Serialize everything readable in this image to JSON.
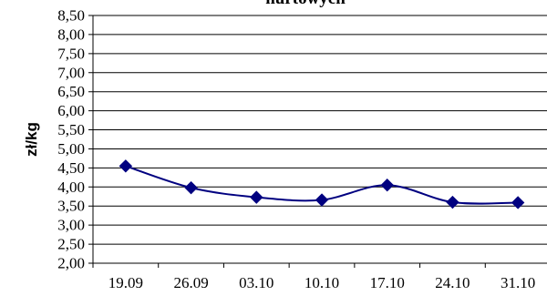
{
  "chart_data": {
    "type": "line",
    "title": "hurtowych",
    "xlabel": "",
    "ylabel": "zł/kg",
    "categories": [
      "19.09",
      "26.09",
      "03.10",
      "10.10",
      "17.10",
      "24.10",
      "31.10"
    ],
    "series": [
      {
        "values": [
          4.55,
          3.98,
          3.73,
          3.66,
          4.05,
          3.6,
          3.59
        ]
      }
    ],
    "ylim": [
      2.0,
      8.5
    ],
    "yticks": [
      "2,00",
      "2,50",
      "3,00",
      "3,50",
      "4,00",
      "4,50",
      "5,00",
      "5,50",
      "6,00",
      "6,50",
      "7,00",
      "7,50",
      "8,00",
      "8,50"
    ],
    "grid": true,
    "legend": "none",
    "colors": {
      "series": "#000080",
      "grid": "#000000"
    }
  }
}
